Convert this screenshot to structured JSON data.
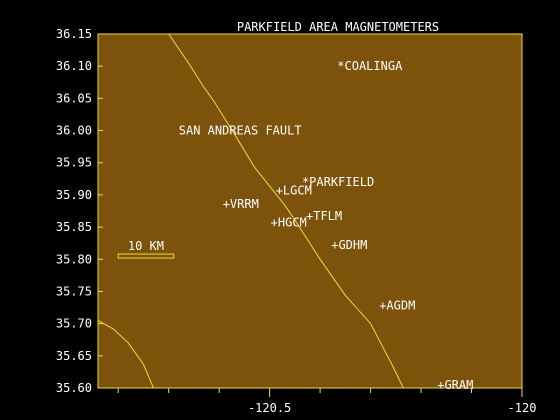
{
  "title": "PARKFIELD AREA MAGNETOMETERS",
  "colors": {
    "background": "#000000",
    "plot_fill": "#7d520a",
    "frame": "#f0dc3c",
    "fault_line": "#f0dc3c",
    "text": "#ffffff"
  },
  "chart_data": {
    "type": "map",
    "xlim": [
      -120.84,
      -120.0
    ],
    "ylim": [
      35.6,
      36.15
    ],
    "x_ticks": [
      {
        "value": -120.5,
        "label": "-120.5"
      },
      {
        "value": -120.0,
        "label": "-120"
      }
    ],
    "x_minor_ticks": [
      -120.9,
      -120.8,
      -120.7,
      -120.6,
      -120.4,
      -120.3,
      -120.2,
      -120.1
    ],
    "y_ticks": [
      {
        "value": 36.15,
        "label": "36.15"
      },
      {
        "value": 36.1,
        "label": "36.10"
      },
      {
        "value": 36.05,
        "label": "36.05"
      },
      {
        "value": 36.0,
        "label": "36.00"
      },
      {
        "value": 35.95,
        "label": "35.95"
      },
      {
        "value": 35.9,
        "label": "35.90"
      },
      {
        "value": 35.85,
        "label": "35.85"
      },
      {
        "value": 35.8,
        "label": "35.80"
      },
      {
        "value": 35.75,
        "label": "35.75"
      },
      {
        "value": 35.7,
        "label": "35.70"
      },
      {
        "value": 35.65,
        "label": "35.65"
      },
      {
        "value": 35.6,
        "label": "35.60"
      }
    ],
    "fault": {
      "label": "SAN ANDREAS FAULT",
      "label_at": [
        -120.68,
        36.0
      ],
      "trace": [
        [
          -120.7,
          36.15
        ],
        [
          -120.66,
          36.104
        ],
        [
          -120.63,
          36.067
        ],
        [
          -120.61,
          36.045
        ],
        [
          -120.57,
          35.995
        ],
        [
          -120.53,
          35.943
        ],
        [
          -120.47,
          35.884
        ],
        [
          -120.45,
          35.861
        ],
        [
          -120.4,
          35.8
        ],
        [
          -120.35,
          35.744
        ],
        [
          -120.3,
          35.7
        ],
        [
          -120.26,
          35.64
        ],
        [
          -120.235,
          35.6
        ]
      ]
    },
    "coast": [
      [
        -120.84,
        35.705
      ],
      [
        -120.81,
        35.692
      ],
      [
        -120.78,
        35.67
      ],
      [
        -120.75,
        35.637
      ],
      [
        -120.73,
        35.6
      ]
    ],
    "cities": [
      {
        "name": "COALINGA",
        "lon": -120.36,
        "lat": 36.1
      },
      {
        "name": "PARKFIELD",
        "lon": -120.43,
        "lat": 35.92
      }
    ],
    "stations": [
      {
        "name": "LGCM",
        "lon": -120.48,
        "lat": 35.907
      },
      {
        "name": "VRRM",
        "lon": -120.585,
        "lat": 35.886
      },
      {
        "name": "HGCM",
        "lon": -120.49,
        "lat": 35.857
      },
      {
        "name": "TFLM",
        "lon": -120.42,
        "lat": 35.867
      },
      {
        "name": "GDHM",
        "lon": -120.37,
        "lat": 35.822
      },
      {
        "name": "AGDM",
        "lon": -120.275,
        "lat": 35.728
      },
      {
        "name": "GRAM",
        "lon": -120.16,
        "lat": 35.605
      }
    ],
    "scale_bar": {
      "label": "10 KM",
      "length_deg": 0.11,
      "start_lon": -120.8,
      "lat": 35.805
    }
  }
}
